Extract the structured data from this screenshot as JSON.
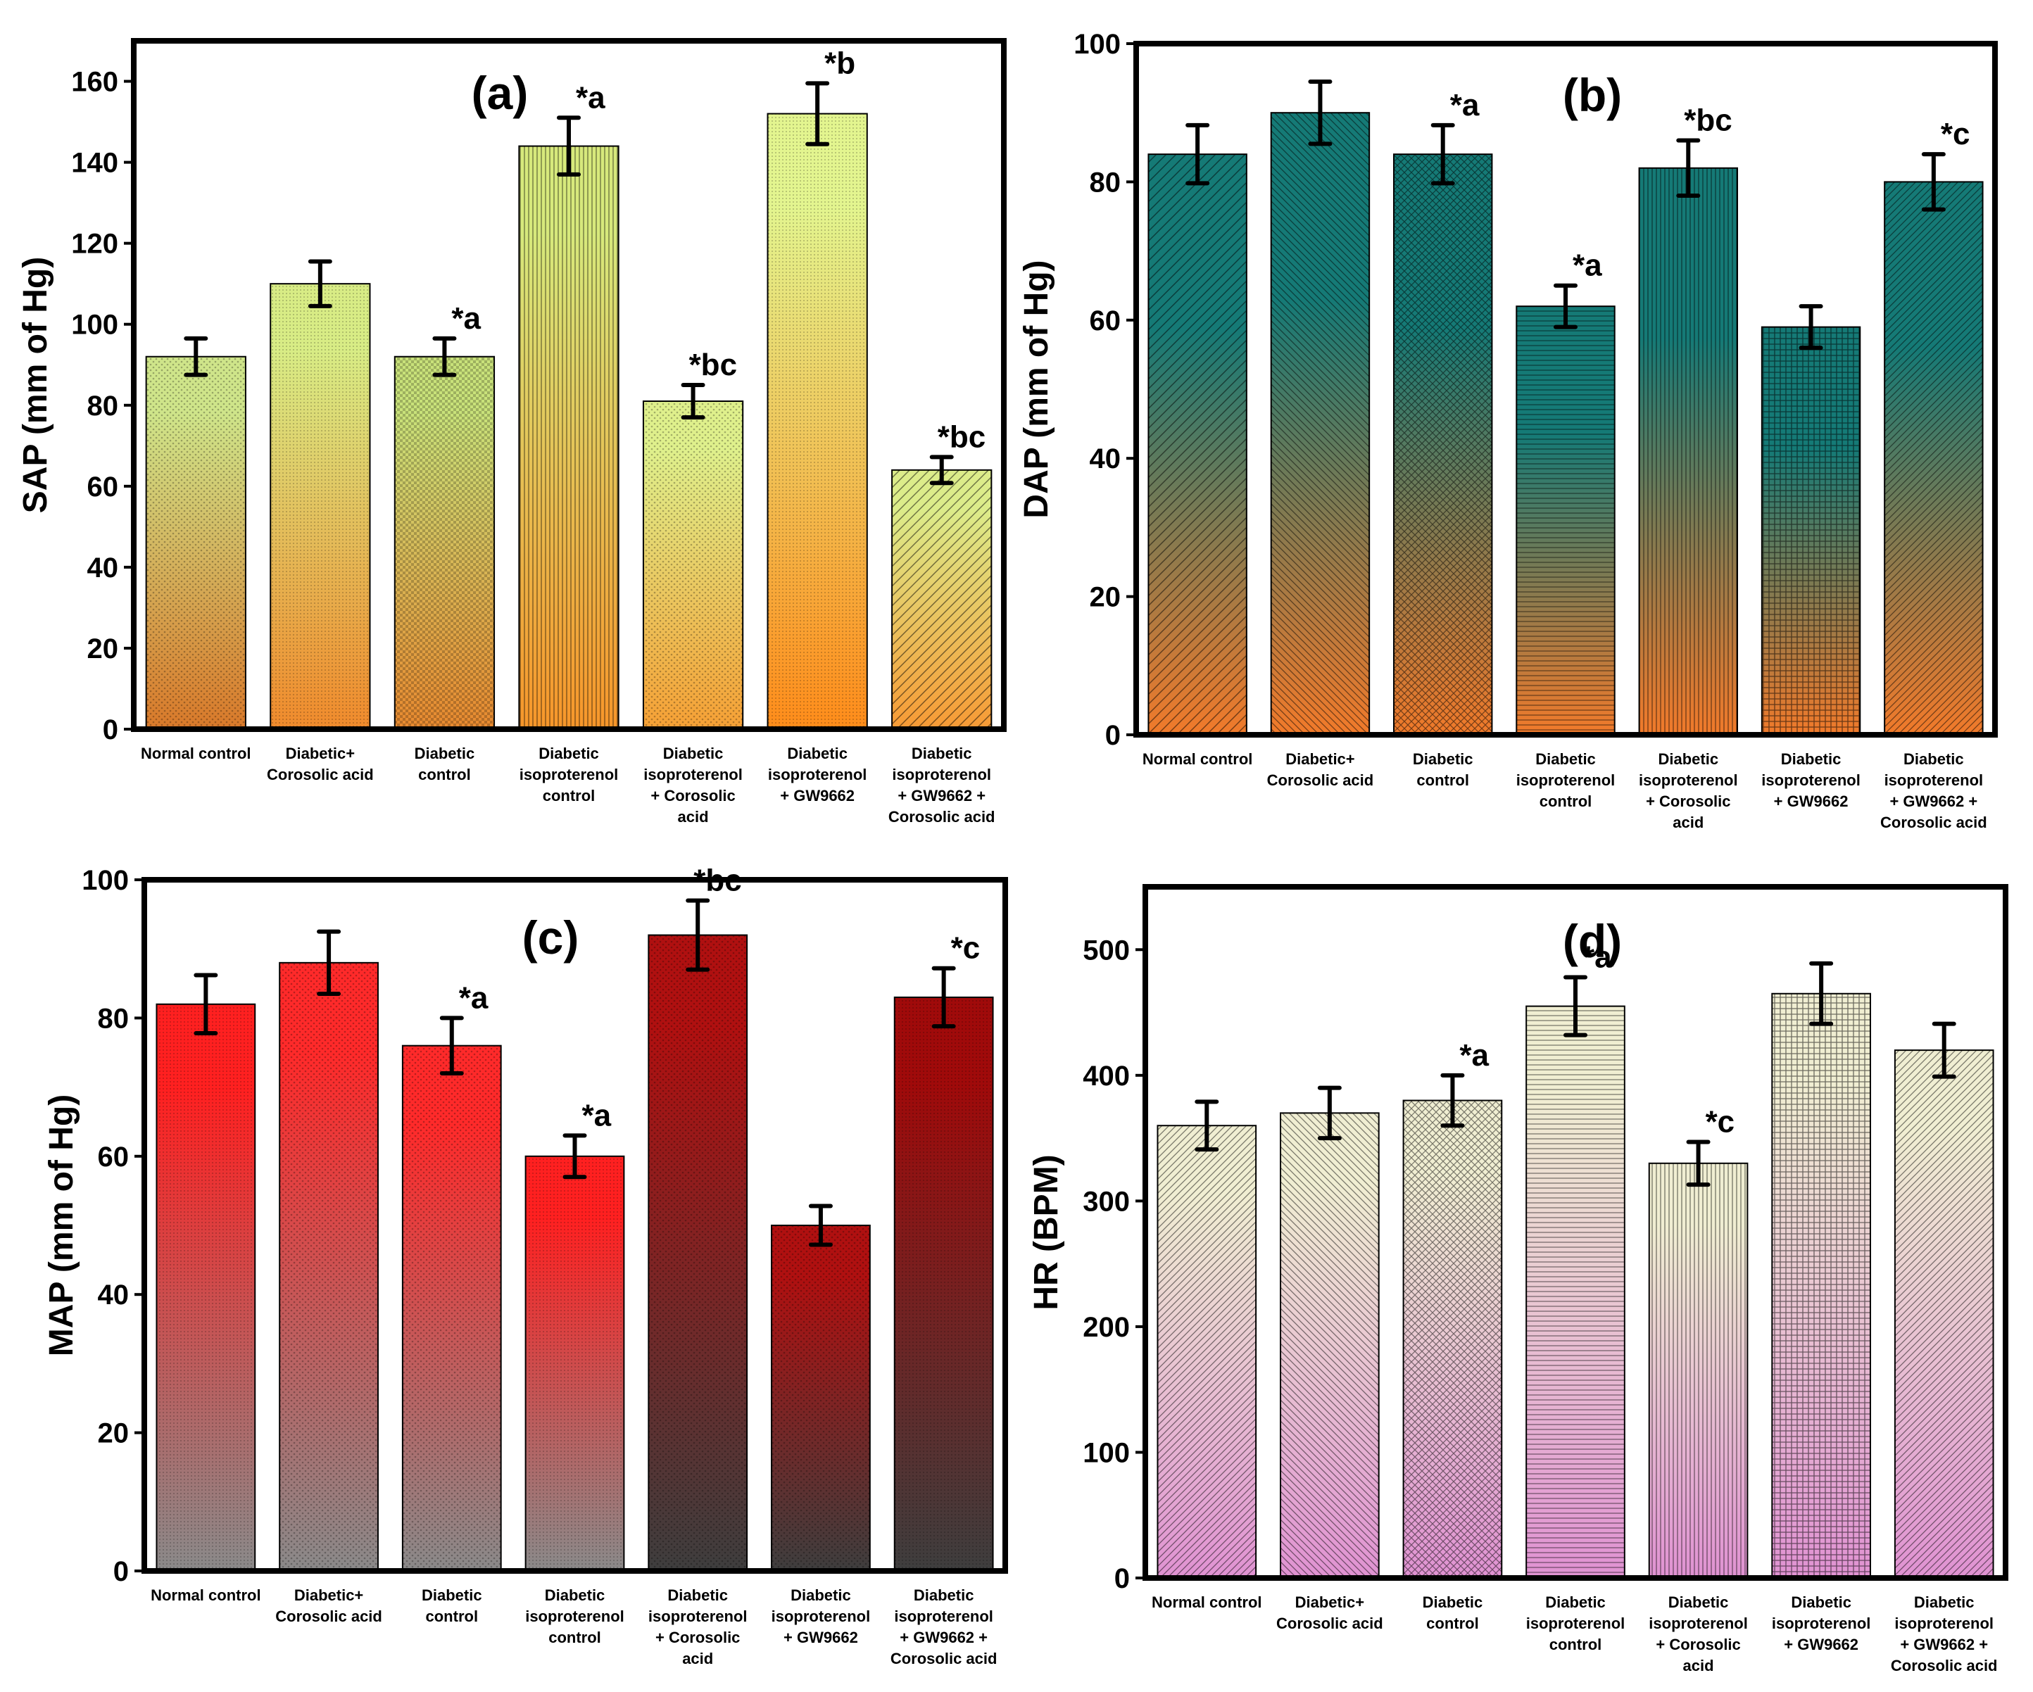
{
  "chart_data": [
    {
      "type": "bar",
      "title": "(a)",
      "xlabel": "",
      "ylabel": "SAP (mm of Hg)",
      "ylim": [
        0,
        170
      ],
      "yticks": [
        0,
        20,
        40,
        60,
        80,
        100,
        120,
        140,
        160
      ],
      "categories": [
        [
          "Normal control"
        ],
        [
          "Diabetic+",
          "Corosolic acid"
        ],
        [
          "Diabetic",
          "control"
        ],
        [
          "Diabetic",
          "isoproterenol",
          "control"
        ],
        [
          "Diabetic",
          "isoproterenol",
          "+ Corosolic",
          "acid"
        ],
        [
          "Diabetic",
          "isoproterenol",
          "+ GW9662"
        ],
        [
          "Diabetic",
          "isoproterenol",
          "+ GW9662 +",
          "Corosolic acid"
        ]
      ],
      "values": [
        92,
        110,
        92,
        144,
        81,
        152,
        64
      ],
      "errors": [
        4.5,
        5.5,
        4.5,
        7,
        4,
        7.5,
        3.2
      ],
      "annotations": [
        "",
        "",
        "*a",
        "*a",
        "*bc",
        "*b",
        "*bc"
      ],
      "gradient": [
        "#cde86c",
        "#e8893c"
      ],
      "bar_gradients": [
        [
          "#cfe58a",
          "#d9792a"
        ],
        [
          "#d8ec85",
          "#f08a2c"
        ],
        [
          "#c9e27a",
          "#e8892f"
        ],
        [
          "#d7e97c",
          "#f7962a"
        ],
        [
          "#dff08c",
          "#f6a035"
        ],
        [
          "#e3f58f",
          "#ff8c1a"
        ],
        [
          "#dcec8a",
          "#f79a35"
        ]
      ]
    },
    {
      "type": "bar",
      "title": "(b)",
      "xlabel": "",
      "ylabel": "DAP (mm of Hg)",
      "ylim": [
        0,
        100
      ],
      "yticks": [
        0,
        20,
        40,
        60,
        80,
        100
      ],
      "categories": [
        [
          "Normal control"
        ],
        [
          "Diabetic+",
          "Corosolic acid"
        ],
        [
          "Diabetic",
          "control"
        ],
        [
          "Diabetic",
          "isoproterenol",
          "control"
        ],
        [
          "Diabetic",
          "isoproterenol",
          "+ Corosolic",
          "acid"
        ],
        [
          "Diabetic",
          "isoproterenol",
          "+ GW9662"
        ],
        [
          "Diabetic",
          "isoproterenol",
          "+ GW9662 +",
          "Corosolic acid"
        ]
      ],
      "values": [
        84,
        90,
        84,
        62,
        82,
        59,
        80
      ],
      "errors": [
        4.2,
        4.5,
        4.2,
        3,
        4,
        3,
        4
      ],
      "annotations": [
        "",
        "",
        "*a",
        "*a",
        "*bc",
        "",
        "*c"
      ],
      "bar_gradients": [
        [
          "#157a76",
          "#f27a2a"
        ],
        [
          "#157a76",
          "#f27a2a"
        ],
        [
          "#157a76",
          "#f27a2a"
        ],
        [
          "#157a76",
          "#f27a2a"
        ],
        [
          "#157a76",
          "#f27a2a"
        ],
        [
          "#157a76",
          "#f27a2a"
        ],
        [
          "#157a76",
          "#f27a2a"
        ]
      ]
    },
    {
      "type": "bar",
      "title": "(c)",
      "xlabel": "",
      "ylabel": "MAP (mm of Hg)",
      "ylim": [
        0,
        100
      ],
      "yticks": [
        0,
        20,
        40,
        60,
        80,
        100
      ],
      "categories": [
        [
          "Normal control"
        ],
        [
          "Diabetic+",
          "Corosolic acid"
        ],
        [
          "Diabetic",
          "control"
        ],
        [
          "Diabetic",
          "isoproterenol",
          "control"
        ],
        [
          "Diabetic",
          "isoproterenol",
          "+ Corosolic",
          "acid"
        ],
        [
          "Diabetic",
          "isoproterenol",
          "+ GW9662"
        ],
        [
          "Diabetic",
          "isoproterenol",
          "+ GW9662 +",
          "Corosolic acid"
        ]
      ],
      "values": [
        82,
        88,
        76,
        60,
        92,
        50,
        83
      ],
      "errors": [
        4.2,
        4.5,
        4,
        3,
        5,
        2.8,
        4.2
      ],
      "annotations": [
        "",
        "",
        "*a",
        "*a",
        "*bc",
        "",
        "*c"
      ],
      "bar_gradients": [
        [
          "#ff2020",
          "#8a8a8a"
        ],
        [
          "#ff2a2a",
          "#8a8a8a"
        ],
        [
          "#ff2a2a",
          "#8a8a8a"
        ],
        [
          "#ff2020",
          "#8a8a8a"
        ],
        [
          "#b01010",
          "#3e3e3e"
        ],
        [
          "#b01010",
          "#3e3e3e"
        ],
        [
          "#a00a0a",
          "#3e3e3e"
        ]
      ]
    },
    {
      "type": "bar",
      "title": "(d)",
      "xlabel": "",
      "ylabel": "HR (BPM)",
      "ylim": [
        0,
        550
      ],
      "yticks": [
        0,
        100,
        200,
        300,
        400,
        500
      ],
      "categories": [
        [
          "Normal control"
        ],
        [
          "Diabetic+",
          "Corosolic acid"
        ],
        [
          "Diabetic",
          "control"
        ],
        [
          "Diabetic",
          "isoproterenol",
          "control"
        ],
        [
          "Diabetic",
          "isoproterenol",
          "+ Corosolic",
          "acid"
        ],
        [
          "Diabetic",
          "isoproterenol",
          "+ GW9662"
        ],
        [
          "Diabetic",
          "isoproterenol",
          "+ GW9662 +",
          "Corosolic acid"
        ]
      ],
      "values": [
        360,
        370,
        380,
        455,
        330,
        465,
        420
      ],
      "errors": [
        19,
        20,
        20,
        23,
        17,
        24,
        21
      ],
      "annotations": [
        "",
        "",
        "*a",
        "*a",
        "*c",
        "",
        ""
      ],
      "bar_gradients": [
        [
          "#f0eed2",
          "#e092d2"
        ],
        [
          "#f0eed2",
          "#e092d2"
        ],
        [
          "#f0eed2",
          "#e092d2"
        ],
        [
          "#f0eed2",
          "#e092d2"
        ],
        [
          "#f0eed2",
          "#e092d2"
        ],
        [
          "#f0eed2",
          "#e092d2"
        ],
        [
          "#f0eed2",
          "#e092d2"
        ]
      ]
    }
  ]
}
